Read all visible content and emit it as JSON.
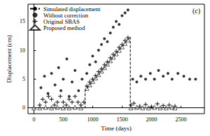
{
  "chart_data": {
    "type": "scatter",
    "annotations": [
      "(c)"
    ],
    "x_label": "Time (days)",
    "y_label": "Displacement (cm)",
    "xlim": [
      -100,
      2900
    ],
    "xticks": [
      0,
      500,
      1000,
      1500,
      2000,
      2500
    ],
    "ylim": [
      -1,
      18
    ],
    "yticks": [
      0,
      5,
      10,
      15
    ],
    "grid": false,
    "legend": "upper left",
    "series": [
      {
        "name": "Simulated displacement",
        "type": "line",
        "line_style": "dashed",
        "marker": "none",
        "color": "#000000",
        "x": [
          0,
          870,
          870,
          1640,
          1640,
          2400
        ],
        "values": [
          0,
          0,
          3,
          12.3,
          0,
          0
        ]
      },
      {
        "name": "Without correction",
        "type": "scatter",
        "marker": "circle",
        "color": "#000000",
        "x": [
          120,
          180,
          240,
          300,
          360,
          420,
          460,
          500,
          560,
          600,
          650,
          700,
          760,
          820,
          900,
          950,
          1000,
          1050,
          1100,
          1150,
          1200,
          1250,
          1300,
          1350,
          1400,
          1450,
          1500,
          1550,
          1600,
          1680,
          1750,
          1820,
          1900,
          1980,
          2050,
          2120,
          2200,
          2280,
          2350,
          2450,
          2550,
          2650,
          2750
        ],
        "values": [
          3.5,
          5.5,
          2.5,
          6,
          4,
          7,
          3,
          5,
          8.5,
          2,
          4.5,
          6.5,
          3,
          5,
          6,
          7.5,
          9,
          8,
          10,
          11,
          12,
          11.5,
          13,
          14,
          15,
          14.5,
          16,
          16.5,
          17,
          5,
          4.5,
          5.5,
          5,
          6,
          5,
          6.5,
          5.5,
          6,
          5,
          6,
          5.5,
          5,
          5
        ]
      },
      {
        "name": "Original SBAS",
        "type": "scatter",
        "marker": "plus",
        "color": "#000000",
        "x": [
          0,
          100,
          150,
          200,
          250,
          300,
          350,
          400,
          450,
          500,
          550,
          600,
          650,
          700,
          750,
          800,
          850,
          900,
          950,
          1000,
          1050,
          1100,
          1150,
          1200,
          1250,
          1300,
          1350,
          1400,
          1450,
          1500,
          1550,
          1600,
          1650,
          1700,
          1800,
          1900,
          2000,
          2100,
          2200,
          2300,
          2400
        ],
        "values": [
          0,
          0.5,
          1.5,
          1,
          2,
          1.5,
          0.5,
          1,
          2,
          1,
          0.5,
          1.5,
          1,
          2,
          1,
          0.5,
          1,
          3.8,
          4.5,
          5,
          5.6,
          6.3,
          6.8,
          7.5,
          8,
          8.7,
          9.3,
          9.8,
          10.5,
          11,
          11.7,
          12.2,
          0.5,
          0.8,
          0.3,
          0.6,
          0.2,
          0.7,
          0.4,
          0.5,
          0.3
        ]
      },
      {
        "name": "Proposed method",
        "type": "scatter",
        "marker": "triangle",
        "color": "#000000",
        "x": [
          0,
          100,
          200,
          300,
          400,
          500,
          600,
          700,
          800,
          900,
          950,
          1000,
          1050,
          1100,
          1150,
          1200,
          1250,
          1300,
          1350,
          1400,
          1450,
          1500,
          1550,
          1600,
          1650,
          1750,
          1850,
          1950,
          2050,
          2150,
          2250,
          2350,
          2400
        ],
        "values": [
          0,
          0,
          0.1,
          0,
          0.1,
          0,
          0,
          0.1,
          0,
          3.4,
          4,
          4.6,
          5.2,
          5.8,
          6.4,
          7,
          7.6,
          8.2,
          8.8,
          9.4,
          10,
          10.6,
          11.2,
          11.8,
          0,
          0.1,
          0,
          0,
          0.1,
          0,
          0,
          0.1,
          0
        ]
      }
    ]
  }
}
